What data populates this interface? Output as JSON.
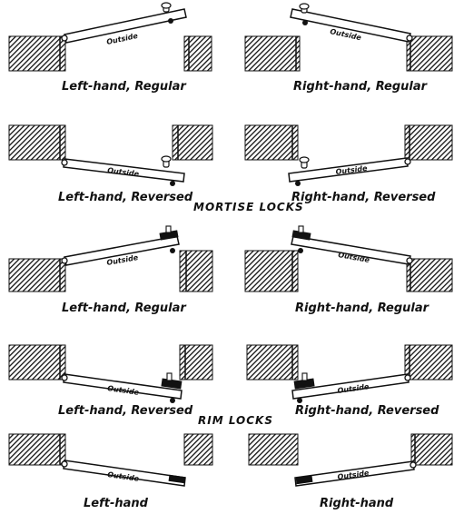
{
  "sections": {
    "mortise": "MORTISE LOCKS",
    "rim": "RIM LOCKS"
  },
  "outside_label": "Outside",
  "captions": [
    "Left-hand, Regular",
    "Right-hand, Regular",
    "Left-hand, Reversed",
    "Right-hand, Reversed",
    "Left-hand, Regular",
    "Right-hand, Regular",
    "Left-hand, Reversed",
    "Right-hand, Reversed",
    "Left-hand",
    "Right-hand"
  ],
  "colors": {
    "ink": "#111111",
    "paper": "#ffffff"
  }
}
